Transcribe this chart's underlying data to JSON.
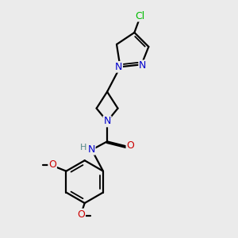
{
  "background_color": "#ebebeb",
  "atom_colors": {
    "C": "#000000",
    "N": "#0000cc",
    "O": "#cc0000",
    "Cl": "#00bb00",
    "H": "#558888"
  },
  "bond_color": "#000000",
  "bond_width": 1.6,
  "figsize": [
    3.0,
    3.0
  ],
  "dpi": 100,
  "xlim": [
    0.5,
    7.5
  ],
  "ylim": [
    0.2,
    10.2
  ]
}
